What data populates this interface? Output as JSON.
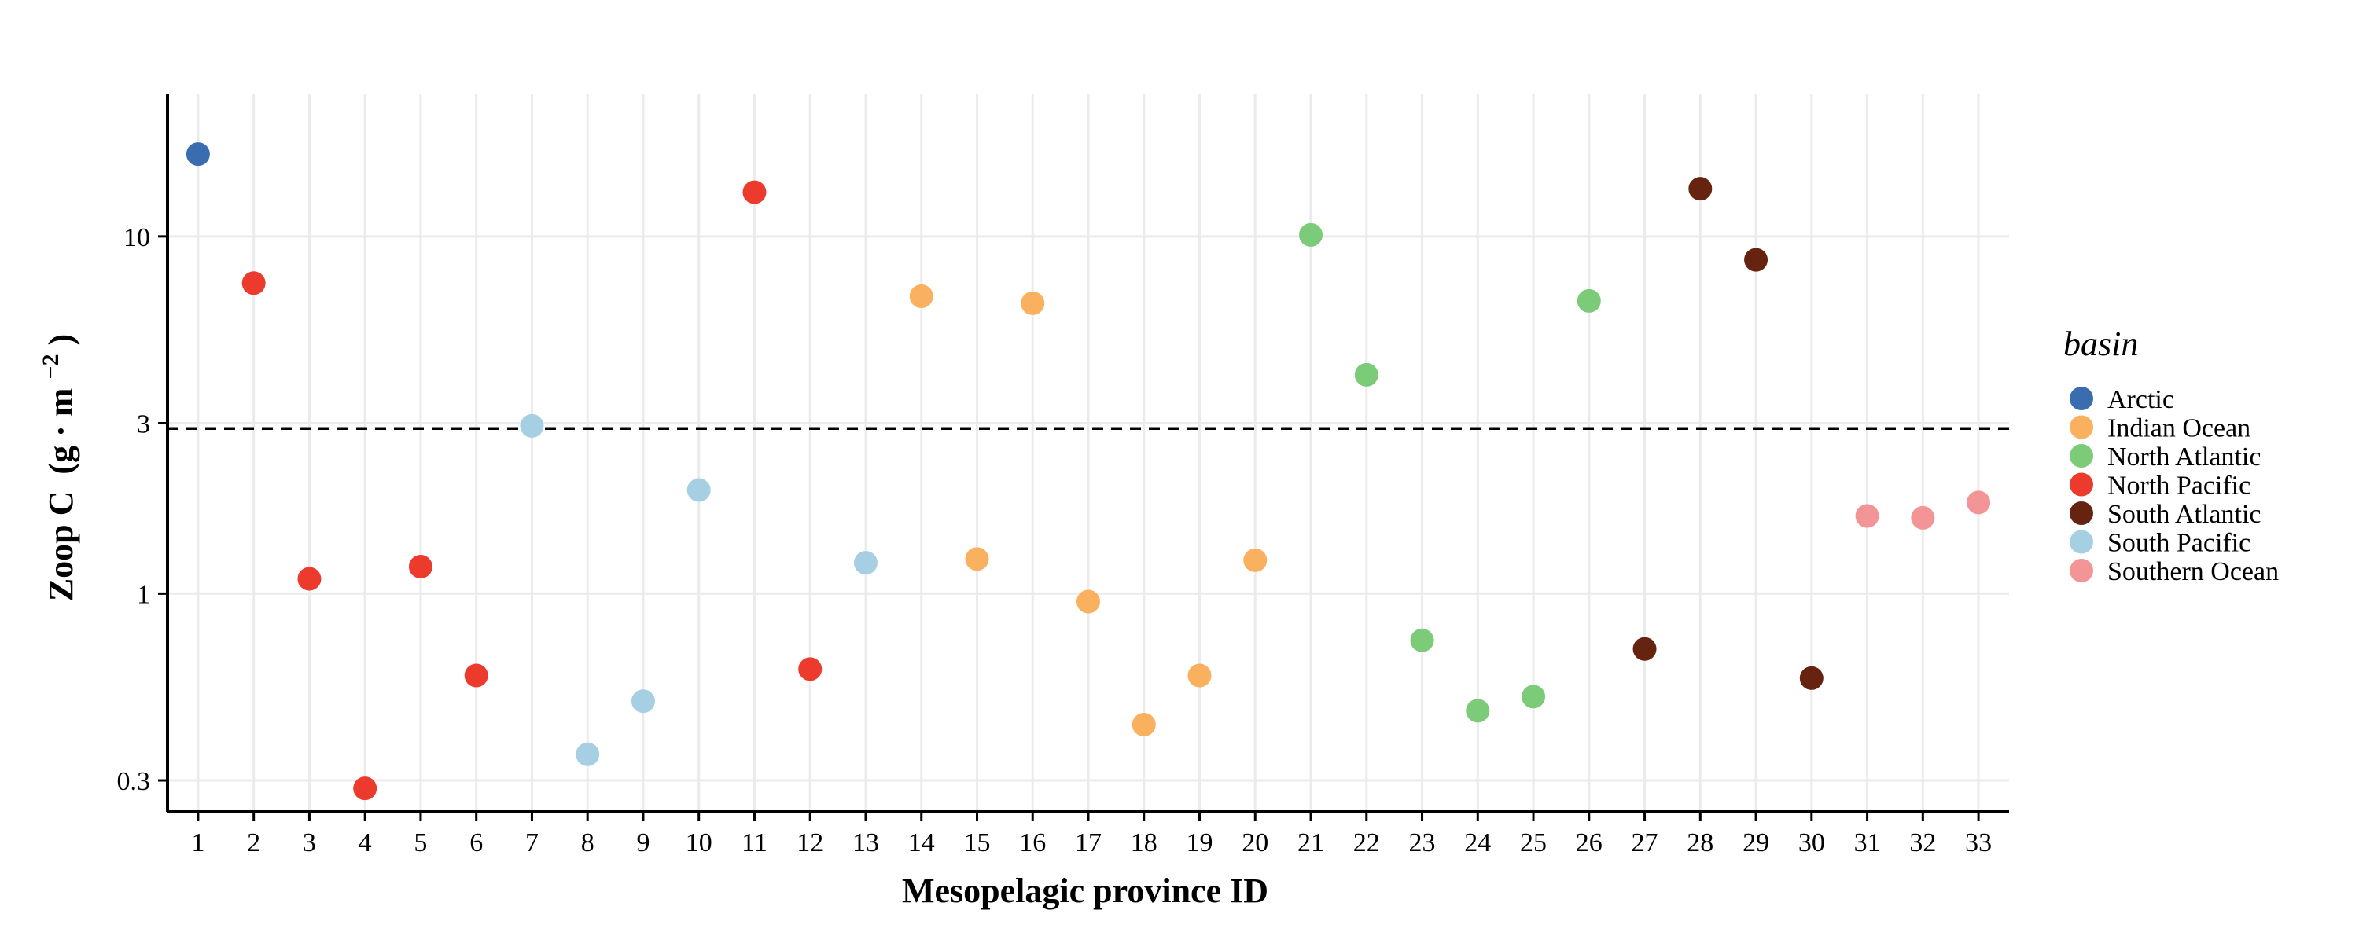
{
  "chart_data": {
    "type": "scatter",
    "xlabel": "Mesopelagic province ID",
    "ylabel_main": "Zoop C",
    "ylabel_unit": "(g · m",
    "ylabel_sup": "−2",
    "ylabel_close": ")",
    "y_scale": "log",
    "ylim": [
      0.245,
      25
    ],
    "xlim": [
      0.45,
      33.55
    ],
    "x_ticks": [
      1,
      2,
      3,
      4,
      5,
      6,
      7,
      8,
      9,
      10,
      11,
      12,
      13,
      14,
      15,
      16,
      17,
      18,
      19,
      20,
      21,
      22,
      23,
      24,
      25,
      26,
      27,
      28,
      29,
      30,
      31,
      32,
      33
    ],
    "y_ticks": [
      0.3,
      1,
      3,
      10
    ],
    "y_tick_labels": [
      "0.3",
      "1",
      "3",
      "10"
    ],
    "grid": true,
    "reference_line": {
      "y": 2.9,
      "style": "dashed"
    },
    "legend": {
      "title": "basin",
      "position": "right",
      "entries": [
        {
          "name": "Arctic",
          "color": "#3a6db0"
        },
        {
          "name": "Indian Ocean",
          "color": "#f9b05f"
        },
        {
          "name": "North Atlantic",
          "color": "#7ccb79"
        },
        {
          "name": "North Pacific",
          "color": "#ec3b2c"
        },
        {
          "name": "South Atlantic",
          "color": "#66230f"
        },
        {
          "name": "South Pacific",
          "color": "#a6cfe3"
        },
        {
          "name": "Southern Ocean",
          "color": "#f39596"
        }
      ]
    },
    "series": [
      {
        "name": "Arctic",
        "points": [
          [
            1,
            17.0
          ]
        ]
      },
      {
        "name": "Indian Ocean",
        "points": [
          [
            14,
            6.8
          ],
          [
            15,
            1.25
          ],
          [
            16,
            6.5
          ],
          [
            17,
            0.95
          ],
          [
            18,
            0.43
          ],
          [
            19,
            0.59
          ],
          [
            20,
            1.24
          ]
        ]
      },
      {
        "name": "North Atlantic",
        "points": [
          [
            21,
            10.1
          ],
          [
            22,
            4.1
          ],
          [
            23,
            0.74
          ],
          [
            24,
            0.47
          ],
          [
            25,
            0.515
          ],
          [
            26,
            6.6
          ]
        ]
      },
      {
        "name": "North Pacific",
        "points": [
          [
            2,
            7.4
          ],
          [
            3,
            1.1
          ],
          [
            4,
            0.285
          ],
          [
            5,
            1.19
          ],
          [
            6,
            0.59
          ],
          [
            11,
            13.3
          ],
          [
            12,
            0.615
          ]
        ]
      },
      {
        "name": "South Atlantic",
        "points": [
          [
            27,
            0.7
          ],
          [
            28,
            13.6
          ],
          [
            29,
            8.6
          ],
          [
            30,
            0.58
          ]
        ]
      },
      {
        "name": "South Pacific",
        "points": [
          [
            7,
            2.95
          ],
          [
            8,
            0.355
          ],
          [
            9,
            0.5
          ],
          [
            10,
            1.95
          ],
          [
            13,
            1.22
          ]
        ]
      },
      {
        "name": "Southern Ocean",
        "points": [
          [
            31,
            1.65
          ],
          [
            32,
            1.63
          ],
          [
            33,
            1.8
          ]
        ]
      }
    ]
  }
}
